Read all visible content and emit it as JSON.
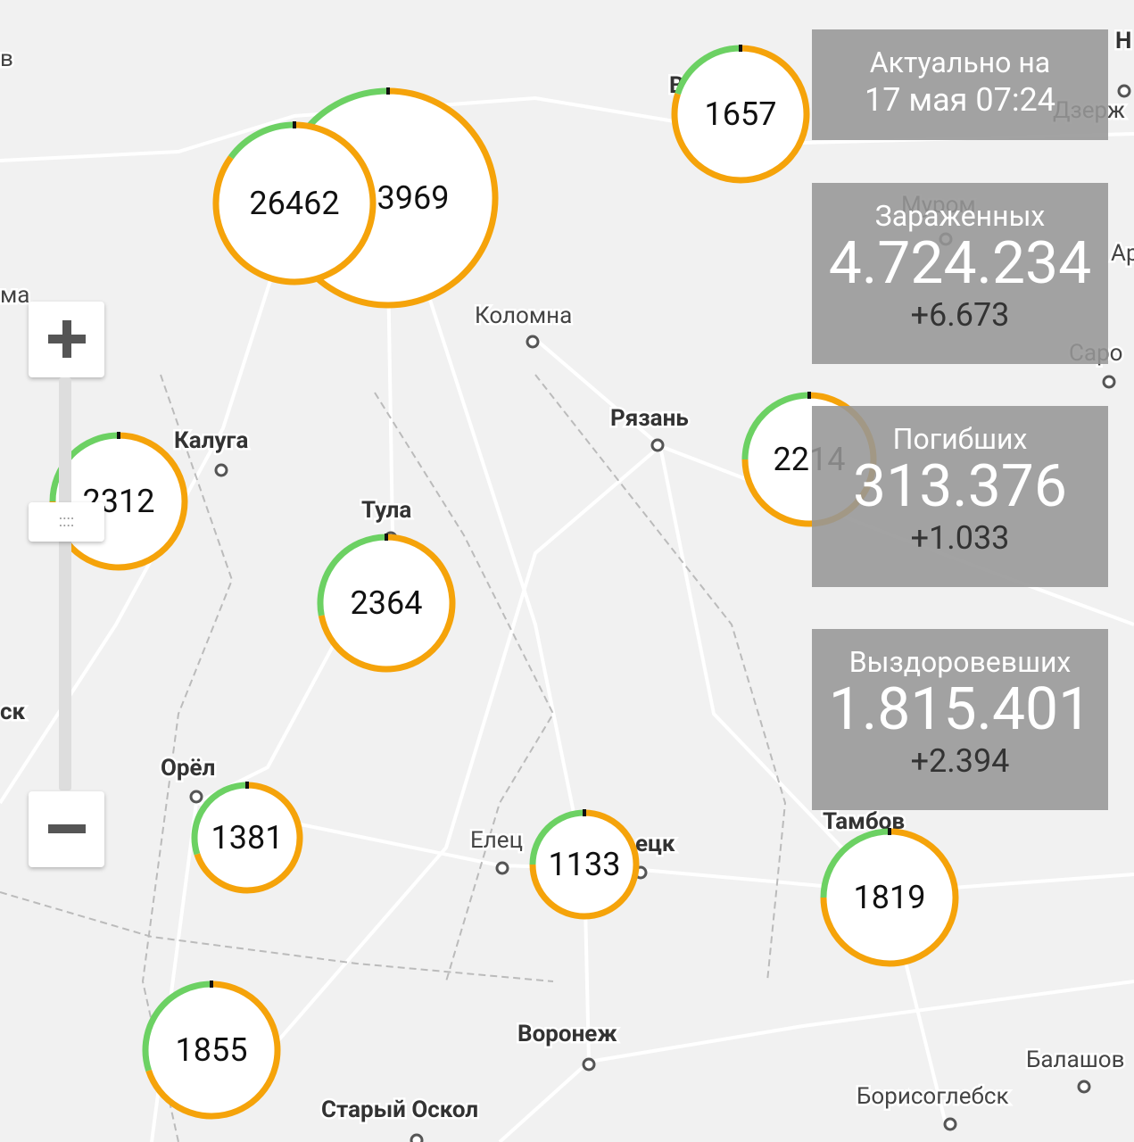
{
  "map": {
    "cities": [
      "Коломна",
      "Рязань",
      "Калуга",
      "Тула",
      "Орёл",
      "Елец",
      "ецк",
      "Тамбов",
      "Воронеж",
      "Старый Оскол",
      "Борисоглебск",
      "Балашов",
      "Муром",
      "Саро",
      "ма",
      "ск",
      "в",
      "Н",
      "Ар",
      "Дзерж",
      "В"
    ],
    "clusters": [
      3969,
      26462,
      1657,
      2312,
      2364,
      2214,
      1381,
      1133,
      1819,
      1855
    ]
  },
  "panel": {
    "updated": {
      "label": "Актуально на",
      "time": "17 мая 07:24"
    },
    "stats": [
      {
        "label": "Зараженных",
        "total": "4.724.234",
        "delta": "+6.673"
      },
      {
        "label": "Погибших",
        "total": "313.376",
        "delta": "+1.033"
      },
      {
        "label": "Выздоровевших",
        "total": "1.815.401",
        "delta": "+2.394"
      }
    ]
  }
}
